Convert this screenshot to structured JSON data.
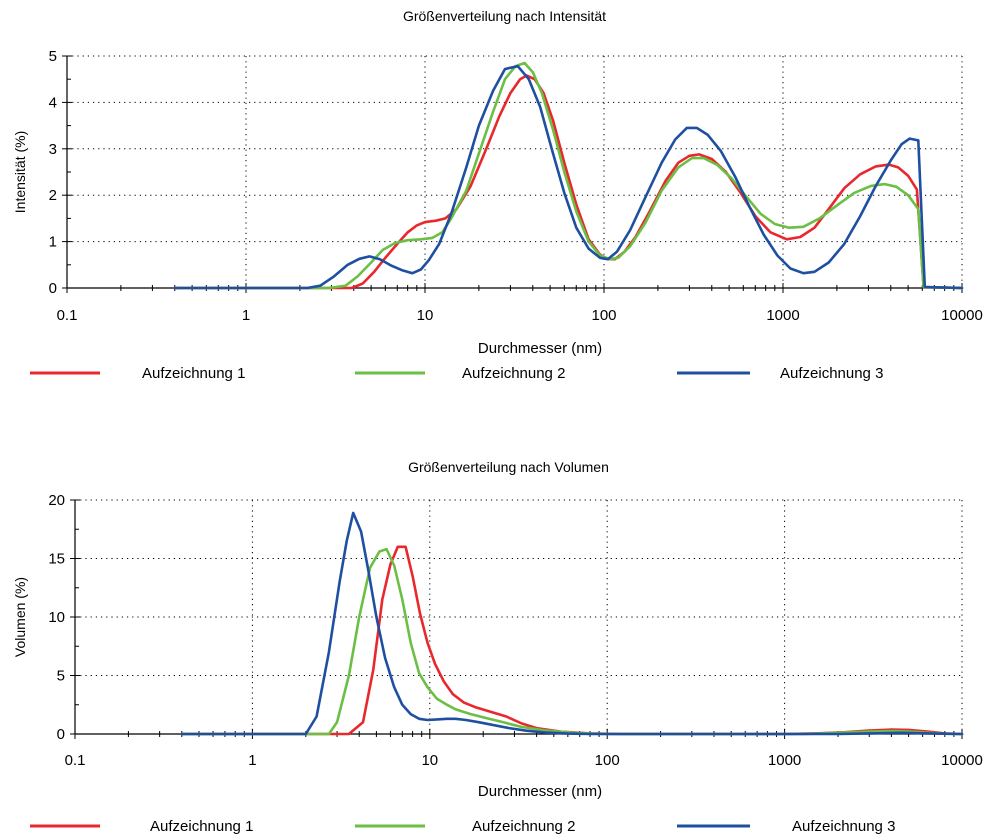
{
  "colors": {
    "series1": "#e8282d",
    "series2": "#6bbf44",
    "series3": "#1f4fa0"
  },
  "chart_data": [
    {
      "type": "line",
      "title": "Größenverteilung nach Intensität",
      "xlabel": "Durchmesser (nm)",
      "ylabel": "Intensität (%)",
      "xscale": "log",
      "xlim": [
        0.1,
        10000
      ],
      "ylim": [
        0,
        5
      ],
      "xticks": [
        "0.1",
        "1",
        "10",
        "100",
        "1000",
        "10000"
      ],
      "yticks": [
        "0",
        "1",
        "2",
        "3",
        "4",
        "5"
      ],
      "grid": true,
      "legend_position": "bottom",
      "series": [
        {
          "name": "Aufzeichnung 1",
          "color": "#e8282d",
          "points": [
            [
              0.4,
              0
            ],
            [
              3,
              0
            ],
            [
              3.9,
              0
            ],
            [
              4.5,
              0.1
            ],
            [
              5.2,
              0.35
            ],
            [
              6,
              0.65
            ],
            [
              7,
              0.95
            ],
            [
              8,
              1.2
            ],
            [
              9,
              1.35
            ],
            [
              10,
              1.42
            ],
            [
              11.5,
              1.45
            ],
            [
              13,
              1.5
            ],
            [
              15,
              1.7
            ],
            [
              18,
              2.2
            ],
            [
              22,
              3
            ],
            [
              26,
              3.7
            ],
            [
              30,
              4.2
            ],
            [
              34,
              4.5
            ],
            [
              37,
              4.58
            ],
            [
              41,
              4.5
            ],
            [
              46,
              4.2
            ],
            [
              52,
              3.6
            ],
            [
              60,
              2.7
            ],
            [
              70,
              1.8
            ],
            [
              82,
              1.05
            ],
            [
              95,
              0.72
            ],
            [
              105,
              0.62
            ],
            [
              115,
              0.62
            ],
            [
              130,
              0.78
            ],
            [
              150,
              1.1
            ],
            [
              180,
              1.65
            ],
            [
              220,
              2.3
            ],
            [
              260,
              2.7
            ],
            [
              300,
              2.85
            ],
            [
              340,
              2.88
            ],
            [
              400,
              2.78
            ],
            [
              480,
              2.5
            ],
            [
              580,
              2.05
            ],
            [
              700,
              1.55
            ],
            [
              850,
              1.2
            ],
            [
              1050,
              1.05
            ],
            [
              1250,
              1.1
            ],
            [
              1500,
              1.3
            ],
            [
              1800,
              1.7
            ],
            [
              2200,
              2.15
            ],
            [
              2700,
              2.45
            ],
            [
              3300,
              2.62
            ],
            [
              3900,
              2.66
            ],
            [
              4400,
              2.6
            ],
            [
              5000,
              2.42
            ],
            [
              5600,
              2.12
            ],
            [
              6100,
              0.02
            ],
            [
              10000,
              0
            ]
          ]
        },
        {
          "name": "Aufzeichnung 2",
          "color": "#6bbf44",
          "points": [
            [
              0.4,
              0
            ],
            [
              2.9,
              0
            ],
            [
              3.6,
              0.05
            ],
            [
              4.2,
              0.25
            ],
            [
              5,
              0.55
            ],
            [
              5.8,
              0.82
            ],
            [
              6.8,
              0.97
            ],
            [
              8,
              1.03
            ],
            [
              9.5,
              1.05
            ],
            [
              11,
              1.08
            ],
            [
              12.5,
              1.2
            ],
            [
              14,
              1.5
            ],
            [
              17,
              2.1
            ],
            [
              20,
              2.9
            ],
            [
              24,
              3.8
            ],
            [
              28,
              4.5
            ],
            [
              32,
              4.78
            ],
            [
              36,
              4.85
            ],
            [
              40,
              4.65
            ],
            [
              45,
              4.2
            ],
            [
              52,
              3.4
            ],
            [
              60,
              2.5
            ],
            [
              70,
              1.65
            ],
            [
              82,
              1.0
            ],
            [
              95,
              0.7
            ],
            [
              108,
              0.62
            ],
            [
              120,
              0.65
            ],
            [
              140,
              0.9
            ],
            [
              170,
              1.4
            ],
            [
              210,
              2.1
            ],
            [
              260,
              2.6
            ],
            [
              310,
              2.8
            ],
            [
              360,
              2.8
            ],
            [
              430,
              2.65
            ],
            [
              520,
              2.35
            ],
            [
              620,
              1.98
            ],
            [
              750,
              1.6
            ],
            [
              900,
              1.38
            ],
            [
              1080,
              1.3
            ],
            [
              1300,
              1.32
            ],
            [
              1600,
              1.5
            ],
            [
              2000,
              1.78
            ],
            [
              2500,
              2.05
            ],
            [
              3100,
              2.2
            ],
            [
              3700,
              2.24
            ],
            [
              4300,
              2.18
            ],
            [
              5000,
              2.0
            ],
            [
              5700,
              1.7
            ],
            [
              6100,
              0.02
            ],
            [
              10000,
              0
            ]
          ]
        },
        {
          "name": "Aufzeichnung 3",
          "color": "#1f4fa0",
          "points": [
            [
              0.4,
              0
            ],
            [
              2.2,
              0
            ],
            [
              2.6,
              0.05
            ],
            [
              3.1,
              0.25
            ],
            [
              3.7,
              0.5
            ],
            [
              4.3,
              0.63
            ],
            [
              4.9,
              0.68
            ],
            [
              5.6,
              0.62
            ],
            [
              6.5,
              0.48
            ],
            [
              7.5,
              0.38
            ],
            [
              8.5,
              0.32
            ],
            [
              9.5,
              0.4
            ],
            [
              10.5,
              0.6
            ],
            [
              12,
              0.95
            ],
            [
              14,
              1.6
            ],
            [
              17,
              2.6
            ],
            [
              20,
              3.5
            ],
            [
              24,
              4.25
            ],
            [
              28,
              4.72
            ],
            [
              33,
              4.78
            ],
            [
              38,
              4.5
            ],
            [
              44,
              3.9
            ],
            [
              51,
              3.0
            ],
            [
              60,
              2.05
            ],
            [
              70,
              1.3
            ],
            [
              82,
              0.85
            ],
            [
              95,
              0.65
            ],
            [
              105,
              0.62
            ],
            [
              118,
              0.78
            ],
            [
              140,
              1.25
            ],
            [
              170,
              1.95
            ],
            [
              210,
              2.7
            ],
            [
              250,
              3.2
            ],
            [
              290,
              3.45
            ],
            [
              330,
              3.45
            ],
            [
              380,
              3.3
            ],
            [
              450,
              2.95
            ],
            [
              540,
              2.4
            ],
            [
              650,
              1.75
            ],
            [
              780,
              1.15
            ],
            [
              930,
              0.7
            ],
            [
              1100,
              0.42
            ],
            [
              1300,
              0.32
            ],
            [
              1500,
              0.35
            ],
            [
              1800,
              0.55
            ],
            [
              2200,
              0.95
            ],
            [
              2700,
              1.55
            ],
            [
              3300,
              2.2
            ],
            [
              4000,
              2.75
            ],
            [
              4600,
              3.1
            ],
            [
              5100,
              3.22
            ],
            [
              5700,
              3.18
            ],
            [
              6200,
              0.02
            ],
            [
              10000,
              0
            ]
          ]
        }
      ]
    },
    {
      "type": "line",
      "title": "Größenverteilung nach Volumen",
      "xlabel": "Durchmesser (nm)",
      "ylabel": "Volumen (%)",
      "xscale": "log",
      "xlim": [
        0.1,
        10000
      ],
      "ylim": [
        0,
        20
      ],
      "xticks": [
        "0.1",
        "1",
        "10",
        "100",
        "1000",
        "10000"
      ],
      "yticks": [
        "0",
        "5",
        "10",
        "15",
        "20"
      ],
      "grid": true,
      "legend_position": "bottom",
      "series": [
        {
          "name": "Aufzeichnung 1",
          "color": "#e8282d",
          "points": [
            [
              0.4,
              0
            ],
            [
              3.5,
              0
            ],
            [
              4.2,
              1.0
            ],
            [
              4.8,
              5.5
            ],
            [
              5.4,
              11.5
            ],
            [
              6.0,
              14.5
            ],
            [
              6.6,
              16.0
            ],
            [
              7.3,
              16.0
            ],
            [
              8.0,
              13.5
            ],
            [
              8.8,
              10.3
            ],
            [
              9.7,
              7.8
            ],
            [
              10.7,
              6.0
            ],
            [
              12,
              4.5
            ],
            [
              13.5,
              3.4
            ],
            [
              15.5,
              2.7
            ],
            [
              18,
              2.3
            ],
            [
              22,
              1.9
            ],
            [
              27,
              1.5
            ],
            [
              33,
              0.9
            ],
            [
              40,
              0.5
            ],
            [
              55,
              0.2
            ],
            [
              80,
              0.05
            ],
            [
              120,
              0
            ],
            [
              1000,
              0
            ],
            [
              1500,
              0.05
            ],
            [
              2200,
              0.15
            ],
            [
              3000,
              0.3
            ],
            [
              4000,
              0.38
            ],
            [
              5000,
              0.35
            ],
            [
              6500,
              0.2
            ],
            [
              8000,
              0.05
            ],
            [
              10000,
              0
            ]
          ]
        },
        {
          "name": "Aufzeichnung 2",
          "color": "#6bbf44",
          "points": [
            [
              0.4,
              0
            ],
            [
              2.7,
              0
            ],
            [
              3.0,
              1.0
            ],
            [
              3.5,
              5.0
            ],
            [
              4.0,
              10.0
            ],
            [
              4.6,
              14.2
            ],
            [
              5.2,
              15.6
            ],
            [
              5.7,
              15.8
            ],
            [
              6.3,
              14.4
            ],
            [
              7.0,
              11.5
            ],
            [
              7.8,
              7.8
            ],
            [
              8.7,
              5.2
            ],
            [
              9.7,
              4.0
            ],
            [
              11,
              3.0
            ],
            [
              12.5,
              2.5
            ],
            [
              14,
              2.1
            ],
            [
              17,
              1.7
            ],
            [
              21,
              1.35
            ],
            [
              26,
              1.0
            ],
            [
              33,
              0.6
            ],
            [
              45,
              0.3
            ],
            [
              65,
              0.1
            ],
            [
              100,
              0
            ],
            [
              1300,
              0
            ],
            [
              1800,
              0.08
            ],
            [
              2500,
              0.16
            ],
            [
              3300,
              0.22
            ],
            [
              4200,
              0.25
            ],
            [
              5200,
              0.2
            ],
            [
              6500,
              0.1
            ],
            [
              8000,
              0.02
            ],
            [
              10000,
              0
            ]
          ]
        },
        {
          "name": "Aufzeichnung 3",
          "color": "#1f4fa0",
          "points": [
            [
              0.4,
              0
            ],
            [
              2.0,
              0
            ],
            [
              2.3,
              1.5
            ],
            [
              2.7,
              7.0
            ],
            [
              3.1,
              13.0
            ],
            [
              3.4,
              16.5
            ],
            [
              3.7,
              18.9
            ],
            [
              4.1,
              17.3
            ],
            [
              4.5,
              14.0
            ],
            [
              5.0,
              10.0
            ],
            [
              5.6,
              6.5
            ],
            [
              6.3,
              4.0
            ],
            [
              7.0,
              2.5
            ],
            [
              7.8,
              1.7
            ],
            [
              8.7,
              1.3
            ],
            [
              9.7,
              1.2
            ],
            [
              11,
              1.25
            ],
            [
              12.5,
              1.3
            ],
            [
              14,
              1.3
            ],
            [
              16,
              1.2
            ],
            [
              19,
              1.0
            ],
            [
              23,
              0.75
            ],
            [
              28,
              0.5
            ],
            [
              35,
              0.28
            ],
            [
              45,
              0.12
            ],
            [
              60,
              0.03
            ],
            [
              80,
              0
            ],
            [
              2000,
              0
            ],
            [
              3000,
              0.05
            ],
            [
              4500,
              0.1
            ],
            [
              6500,
              0.05
            ],
            [
              10000,
              0
            ]
          ]
        }
      ]
    }
  ]
}
